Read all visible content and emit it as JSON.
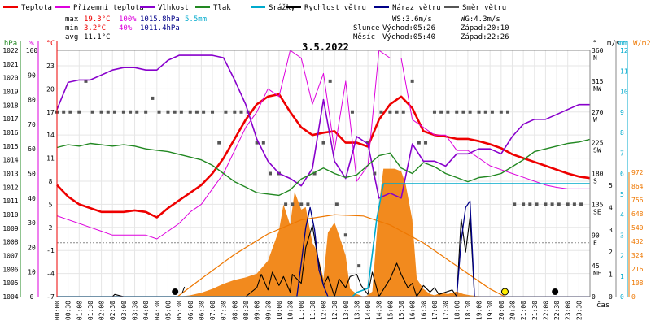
{
  "chart_data": {
    "type": "line",
    "title": "3.5.2022",
    "legend": {
      "placement": "top",
      "items": [
        {
          "label": "Teplota",
          "color": "#ee0000"
        },
        {
          "label": "Přízemní teplota",
          "color": "#dd00dd"
        },
        {
          "label": "Vlhkost",
          "color": "#8800cc"
        },
        {
          "label": "Tlak",
          "color": "#228822"
        },
        {
          "label": "Srážky",
          "color": "#00aacc"
        },
        {
          "label": "Rychlost větru",
          "color": "#000000"
        },
        {
          "label": "Náraz větru",
          "color": "#000088"
        },
        {
          "label": "Směr větru",
          "color": "#555555"
        }
      ]
    },
    "stats": {
      "max_label": "max",
      "min_label": "min",
      "avg_label": "avg",
      "max_temp": "19.3°C",
      "max_hum": "100%",
      "max_press": "1015.8hPa",
      "max_rain": "5.5mm",
      "min_temp": "3.2°C",
      "min_hum": "40%",
      "min_press": "1011.4hPa",
      "avg_temp": "11.1°C",
      "ws": "WS:3.6m/s",
      "wg": "WG:4.3m/s",
      "sun_label": "Slunce",
      "sun_rise": "Východ:05:26",
      "sun_set": "Západ:20:10",
      "moon_label": "Měsíc",
      "moon_rise": "Východ:05:40",
      "moon_set": "Západ:22:26"
    },
    "x_axis": {
      "label": "čas",
      "tick_labels": [
        "00:00",
        "00:30",
        "01:00",
        "01:30",
        "02:00",
        "02:30",
        "03:00",
        "03:30",
        "04:00",
        "04:30",
        "05:00",
        "05:30",
        "06:00",
        "06:30",
        "07:00",
        "07:30",
        "08:00",
        "08:30",
        "09:00",
        "09:30",
        "10:00",
        "10:30",
        "11:00",
        "11:30",
        "12:00",
        "12:30",
        "13:00",
        "13:30",
        "14:00",
        "14:30",
        "15:00",
        "15:30",
        "16:00",
        "16:30",
        "17:00",
        "17:30",
        "18:00",
        "18:30",
        "19:00",
        "19:30",
        "20:00",
        "20:30",
        "21:00",
        "21:30",
        "22:00",
        "22:30",
        "23:00",
        "23:30"
      ]
    },
    "y_axes": {
      "pressure": {
        "unit": "hPa",
        "color": "#228822",
        "range": [
          1004,
          1022
        ],
        "ticks": [
          "1022",
          "1021",
          "1020",
          "1019",
          "1018",
          "1017",
          "1016",
          "1015",
          "1014",
          "1013",
          "1012",
          "1011",
          "1010",
          "1009",
          "1008",
          "1007",
          "1006",
          "1005",
          "1004"
        ]
      },
      "humidity": {
        "unit": "%",
        "color": "#dd00dd",
        "range": [
          0,
          100
        ],
        "ticks": [
          "100",
          "90",
          "80",
          "70",
          "60",
          "50",
          "40",
          "30",
          "20",
          "10",
          "0"
        ]
      },
      "temperature": {
        "unit": "°C",
        "color": "#ee0000",
        "range": [
          -7,
          25
        ],
        "ticks": [
          "23",
          "20",
          "17",
          "14",
          "11",
          "8",
          "5",
          "2",
          "-1",
          "-4",
          "-7"
        ]
      },
      "wind_dir": {
        "unit": "°",
        "ticks": [
          {
            "v": "360",
            "d": "N"
          },
          {
            "v": "315",
            "d": "NW"
          },
          {
            "v": "270",
            "d": "W"
          },
          {
            "v": "225",
            "d": "SW"
          },
          {
            "v": "180",
            "d": "S"
          },
          {
            "v": "135",
            "d": "SE"
          },
          {
            "v": "90",
            "d": "E"
          },
          {
            "v": "45",
            "d": "NE"
          },
          {
            "v": "0",
            "d": ""
          }
        ]
      },
      "wind_speed": {
        "unit": "m/s",
        "range": [
          0,
          5
        ],
        "ticks": [
          "5",
          "4",
          "3",
          "2",
          "1",
          "0"
        ]
      },
      "rain": {
        "unit": "mm",
        "color": "#00aacc",
        "range": [
          0,
          12
        ],
        "ticks": [
          "12",
          "11",
          "10",
          "9",
          "8",
          "7",
          "6",
          "5",
          "4",
          "3",
          "2",
          "1",
          "0"
        ]
      },
      "radiation": {
        "unit": "W/m2",
        "color": "#ee7700",
        "range": [
          0,
          972
        ],
        "ticks": [
          "972",
          "864",
          "756",
          "648",
          "540",
          "432",
          "324",
          "216",
          "108",
          "0"
        ]
      }
    },
    "series": [
      {
        "name": "Teplota",
        "axis": "temperature",
        "color": "#ee0000",
        "x": [
          0,
          0.5,
          1,
          1.5,
          2,
          2.5,
          3,
          3.5,
          4,
          4.5,
          5,
          5.5,
          6,
          6.5,
          7,
          7.5,
          8,
          8.5,
          9,
          9.5,
          10,
          10.5,
          11,
          11.5,
          12,
          12.5,
          13,
          13.5,
          14,
          14.5,
          15,
          15.5,
          16,
          16.5,
          17,
          17.5,
          18,
          18.5,
          19,
          19.5,
          20,
          20.5,
          21,
          21.5,
          22,
          22.5,
          23,
          23.5,
          24
        ],
        "y": [
          7.5,
          6,
          5,
          4.5,
          4,
          4,
          4,
          4.2,
          4,
          3.3,
          4.5,
          5.5,
          6.5,
          7.5,
          9,
          11,
          13.5,
          16,
          18,
          19,
          19.3,
          17,
          15,
          14,
          14.3,
          14.5,
          13,
          13,
          12.5,
          16,
          18,
          19,
          17.5,
          14.5,
          14,
          13.8,
          13.5,
          13.5,
          13.2,
          12.8,
          12.3,
          11.5,
          11,
          10.5,
          10,
          9.5,
          9,
          8.6,
          8.4
        ]
      },
      {
        "name": "Přízemní teplota",
        "axis": "temperature",
        "color": "#dd00dd",
        "x": [
          0,
          0.5,
          1,
          1.5,
          2,
          2.5,
          3,
          3.5,
          4,
          4.5,
          5,
          5.5,
          6,
          6.5,
          7,
          7.5,
          8,
          8.5,
          9,
          9.5,
          10,
          10.5,
          11,
          11.5,
          12,
          12.5,
          13,
          13.5,
          14,
          14.5,
          15,
          15.5,
          16,
          16.5,
          17,
          17.5,
          18,
          18.5,
          19,
          19.5,
          20,
          20.5,
          21,
          21.5,
          22,
          22.5,
          23,
          23.5,
          24
        ],
        "y": [
          3.5,
          3,
          2.5,
          2,
          1.5,
          1,
          1,
          1,
          1,
          0.5,
          1.5,
          2.5,
          4,
          5,
          7,
          9,
          12,
          15,
          17,
          20,
          19,
          25,
          24,
          18,
          22,
          12,
          21,
          8,
          10,
          25,
          24,
          24,
          16,
          15,
          14,
          14,
          12,
          12,
          11,
          10,
          9.5,
          9,
          8.5,
          8,
          7.5,
          7.2,
          7,
          7,
          7
        ]
      },
      {
        "name": "Vlhkost",
        "axis": "humidity",
        "color": "#8800cc",
        "x": [
          0,
          0.5,
          1,
          1.5,
          2,
          2.5,
          3,
          3.5,
          4,
          4.5,
          5,
          5.5,
          6,
          6.5,
          7,
          7.5,
          8,
          8.5,
          9,
          9.5,
          10,
          10.5,
          11,
          11.5,
          12,
          12.5,
          13,
          13.5,
          14,
          14.5,
          15,
          15.5,
          16,
          16.5,
          17,
          17.5,
          18,
          18.5,
          19,
          19.5,
          20,
          20.5,
          21,
          21.5,
          22,
          22.5,
          23,
          23.5,
          24
        ],
        "y": [
          76,
          87,
          88,
          88,
          90,
          92,
          93,
          93,
          92,
          92,
          96,
          98,
          98,
          98,
          98,
          97,
          88,
          78,
          64,
          55,
          50,
          48,
          45,
          52,
          80,
          55,
          48,
          65,
          62,
          40,
          42,
          40,
          62,
          55,
          55,
          53,
          58,
          58,
          60,
          60,
          58,
          65,
          70,
          72,
          72,
          74,
          76,
          78,
          78
        ]
      },
      {
        "name": "Tlak",
        "axis": "pressure",
        "color": "#228822",
        "x": [
          0,
          0.5,
          1,
          1.5,
          2,
          2.5,
          3,
          3.5,
          4,
          4.5,
          5,
          5.5,
          6,
          6.5,
          7,
          7.5,
          8,
          8.5,
          9,
          9.5,
          10,
          10.5,
          11,
          11.5,
          12,
          12.5,
          13,
          13.5,
          14,
          14.5,
          15,
          15.5,
          16,
          16.5,
          17,
          17.5,
          18,
          18.5,
          19,
          19.5,
          20,
          20.5,
          21,
          21.5,
          22,
          22.5,
          23,
          23.5,
          24
        ],
        "y": [
          1014.9,
          1015.1,
          1015.0,
          1015.2,
          1015.1,
          1015.0,
          1015.1,
          1015.0,
          1014.8,
          1014.7,
          1014.6,
          1014.4,
          1014.2,
          1014.0,
          1013.6,
          1013.0,
          1012.4,
          1012.0,
          1011.6,
          1011.5,
          1011.4,
          1011.8,
          1012.6,
          1013.0,
          1013.4,
          1013.0,
          1012.7,
          1012.9,
          1013.6,
          1014.3,
          1014.5,
          1013.4,
          1013.0,
          1013.8,
          1013.5,
          1013.0,
          1012.7,
          1012.4,
          1012.7,
          1012.8,
          1013.0,
          1013.5,
          1014.0,
          1014.6,
          1014.8,
          1015.0,
          1015.2,
          1015.3,
          1015.5
        ]
      },
      {
        "name": "Srážky",
        "axis": "rain",
        "color": "#00aacc",
        "x": [
          0,
          13.3,
          13.5,
          14.0,
          14.4,
          14.7,
          15.0,
          24
        ],
        "y": [
          0,
          0,
          0.2,
          0.4,
          3.8,
          5.5,
          5.5,
          5.5
        ]
      },
      {
        "name": "Rychlost větru",
        "axis": "wind_speed",
        "color": "#000000",
        "x": [
          0,
          2.5,
          2.6,
          3.0,
          3.1,
          8,
          8.5,
          9,
          9.2,
          9.5,
          9.7,
          10,
          10.2,
          10.5,
          10.6,
          11,
          11.2,
          11.5,
          11.7,
          12,
          12.2,
          12.5,
          12.7,
          13,
          13.2,
          13.5,
          13.7,
          14,
          14.2,
          14.5,
          15,
          15.3,
          15.5,
          15.8,
          16,
          16.2,
          16.5,
          16.8,
          17,
          17.2,
          17.5,
          17.8,
          18,
          18.2,
          18.4,
          18.6,
          18.8,
          24
        ],
        "y": [
          0,
          0,
          0.1,
          0,
          0,
          0,
          0,
          0.4,
          1.0,
          0.3,
          1.1,
          0.5,
          0.9,
          0.2,
          1.0,
          0.6,
          2.2,
          3.2,
          2.0,
          0.5,
          0.9,
          0,
          0.8,
          0.4,
          0.9,
          1.0,
          0.5,
          0.1,
          1.1,
          0,
          0.8,
          1.5,
          1.0,
          0.4,
          0.6,
          0,
          0.5,
          0.2,
          0.4,
          0.1,
          0.2,
          0.3,
          0,
          3.5,
          2.0,
          3.6,
          0,
          0
        ]
      },
      {
        "name": "Náraz větru",
        "axis": "wind_speed",
        "color": "#000088",
        "x": [
          0,
          10.8,
          11.0,
          11.2,
          11.4,
          11.6,
          11.8,
          12.0,
          12.2,
          18.0,
          18.2,
          18.4,
          18.6,
          18.8,
          24
        ],
        "y": [
          0,
          0,
          1.5,
          3.1,
          4.0,
          3.0,
          1.2,
          0.5,
          0,
          0,
          2.5,
          4.0,
          4.3,
          0,
          0
        ]
      },
      {
        "name": "Směr větru",
        "axis": "wind_dir",
        "color": "#555555",
        "x": [
          0,
          0.3,
          0.6,
          1,
          1.3,
          1.6,
          2,
          2.3,
          2.6,
          3,
          3.3,
          3.6,
          4,
          4.3,
          4.6,
          5,
          5.3,
          5.6,
          6,
          6.3,
          6.6,
          7,
          7.3,
          7.6,
          8,
          8.3,
          8.6,
          9,
          9.3,
          9.6,
          10,
          10.3,
          10.6,
          11,
          11.3,
          11.6,
          12,
          12.3,
          12.6,
          13,
          13.3,
          13.6,
          14,
          14.3,
          14.6,
          15,
          15.3,
          15.6,
          16,
          16.3,
          16.6,
          17,
          17.3,
          17.6,
          18,
          18.3,
          18.6,
          19,
          19.3,
          19.6,
          20,
          20.3,
          20.6,
          21,
          21.3,
          21.6,
          22,
          22.3,
          22.6,
          23,
          23.3,
          23.6
        ],
        "y": [
          270,
          270,
          270,
          270,
          315,
          270,
          270,
          270,
          270,
          270,
          270,
          270,
          270,
          290,
          270,
          270,
          270,
          270,
          270,
          270,
          270,
          270,
          225,
          270,
          270,
          270,
          270,
          225,
          225,
          180,
          180,
          135,
          135,
          135,
          135,
          180,
          225,
          315,
          135,
          90,
          270,
          45,
          225,
          180,
          270,
          270,
          270,
          270,
          315,
          225,
          225,
          270,
          270,
          270,
          270,
          270,
          270,
          270,
          270,
          270,
          270,
          270,
          135,
          135,
          135,
          135,
          135,
          135,
          135,
          135,
          135,
          135
        ]
      }
    ],
    "solar_radiation": {
      "axis": "radiation",
      "color": "#ee7700",
      "theoretical": {
        "x": [
          5.43,
          6.5,
          8,
          9.5,
          11,
          12.5,
          13.8,
          15,
          16.5,
          18,
          19.5,
          20.17
        ],
        "y": [
          0,
          140,
          330,
          490,
          600,
          640,
          630,
          560,
          420,
          240,
          60,
          0
        ]
      },
      "measured": {
        "x": [
          5.5,
          6,
          6.5,
          7,
          7.5,
          8,
          8.5,
          9,
          9.5,
          10,
          10.2,
          10.5,
          10.7,
          11,
          11.2,
          11.5,
          11.7,
          12,
          12.2,
          12.5,
          12.7,
          13,
          13.2,
          13.5,
          13.8,
          14,
          14.2,
          14.5,
          14.7,
          15,
          15.2,
          15.5,
          15.7,
          16,
          16.2,
          16.5,
          16.8,
          17,
          17.3,
          17.6,
          18,
          18.3,
          18.6,
          18.9,
          19.5,
          20
        ],
        "y": [
          0,
          10,
          30,
          60,
          100,
          130,
          150,
          180,
          280,
          520,
          720,
          560,
          820,
          680,
          700,
          420,
          360,
          140,
          500,
          580,
          480,
          320,
          60,
          20,
          0,
          10,
          40,
          720,
          1000,
          1000,
          1000,
          980,
          880,
          600,
          140,
          60,
          20,
          10,
          30,
          20,
          40,
          20,
          10,
          5,
          0,
          0
        ]
      }
    },
    "markers": [
      {
        "name": "sunrise",
        "time": 5.43
      },
      {
        "name": "sunset",
        "time": 20.17
      },
      {
        "name": "moonrise",
        "time": 5.67
      },
      {
        "name": "moonset",
        "time": 22.43
      }
    ],
    "grid": true
  }
}
